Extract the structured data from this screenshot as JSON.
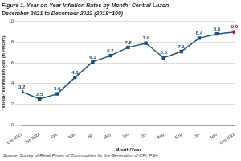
{
  "chart_data": {
    "type": "line",
    "title": "Figure 1. Year-on-Year Inflation Rates by Month: Central Luzon",
    "subtitle": "December 2021 to December 2022 (2018=100)",
    "x_label": "Month/Year",
    "y_label": "Year-on-Year Inflation Rate (in Percent)",
    "source": "Source: Survey of Retail Prices of Commodities for the Generation of CPI, PSA",
    "categories": [
      "Dec 2021",
      "Jan 2022",
      "Feb",
      "Mar",
      "Apr",
      "May",
      "Jun",
      "Jul",
      "Aug",
      "Sep",
      "Oct",
      "Nov",
      "Dec 2022"
    ],
    "values": [
      3.2,
      2.5,
      3.0,
      4.6,
      6.1,
      6.7,
      7.5,
      7.9,
      6.5,
      7.1,
      8.4,
      8.8,
      9.0
    ],
    "value_labels": [
      "3.2",
      "2.5",
      "3.0",
      "4.6",
      "6.1",
      "6.7",
      "7.5",
      "7.9",
      "6.5",
      "7.1",
      "8.4",
      "8.8",
      "9.0"
    ],
    "color": "#1f4e79",
    "colors": [
      "#1f4e79",
      "#1f4e79",
      "#1f4e79",
      "#1f4e79",
      "#1f4e79",
      "#1f4e79",
      "#1f4e79",
      "#1f4e79",
      "#1f4e79",
      "#1f4e79",
      "#1f4e79",
      "#1f4e79",
      "#c00000"
    ],
    "marker": "square",
    "line_style": "solid",
    "ylim": [
      0,
      10
    ],
    "yticks": [
      0,
      2,
      4,
      6,
      8,
      10
    ],
    "grid": true,
    "data_labels": true
  }
}
